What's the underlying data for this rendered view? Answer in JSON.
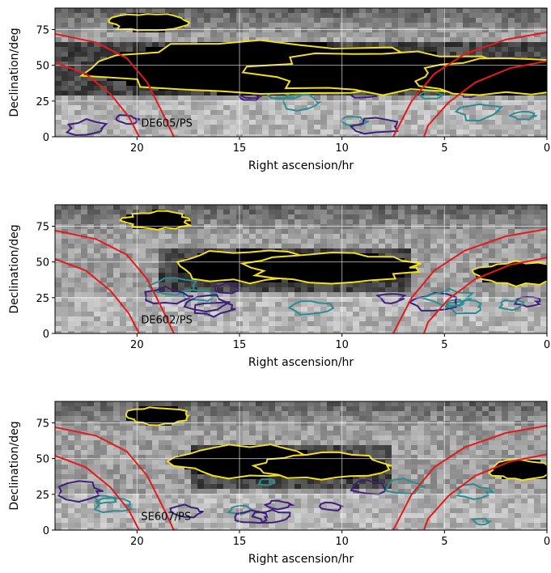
{
  "chart_data": [
    {
      "type": "heatmap",
      "panel_label": "DE605/PS",
      "xlabel": "Right ascension/hr",
      "ylabel": "Declination/deg",
      "xlim": [
        24,
        0
      ],
      "ylim": [
        0,
        90
      ],
      "xticks": [
        "20",
        "15",
        "10",
        "5",
        "0"
      ],
      "yticks": [
        "0",
        "25",
        "50",
        "75"
      ],
      "grid": true,
      "colormap": "gray",
      "contour_colors": [
        "#3b1f7a",
        "#2e8b8f",
        "#f2e01a"
      ],
      "horizon_color": "#e41a1c",
      "dark_band": {
        "ra_start": 24,
        "ra_end": 0,
        "dec_low": 30,
        "dec_high": 65
      },
      "blobs": [
        {
          "ra": 19.5,
          "dec": 80,
          "w": 1.8,
          "h": 6
        },
        {
          "ra": 14.0,
          "dec": 48,
          "w": 8.0,
          "h": 18
        },
        {
          "ra": 8.0,
          "dec": 45,
          "w": 6.0,
          "h": 14
        },
        {
          "ra": 2.0,
          "dec": 42,
          "w": 4.5,
          "h": 12
        }
      ]
    },
    {
      "type": "heatmap",
      "panel_label": "DE602/PS",
      "xlabel": "Right ascension/hr",
      "ylabel": "Declination/deg",
      "xlim": [
        24,
        0
      ],
      "ylim": [
        0,
        90
      ],
      "xticks": [
        "20",
        "15",
        "10",
        "5",
        "0"
      ],
      "yticks": [
        "0",
        "25",
        "50",
        "75"
      ],
      "grid": true,
      "colormap": "gray",
      "contour_colors": [
        "#3b1f7a",
        "#2e8b8f",
        "#f2e01a"
      ],
      "horizon_color": "#e41a1c",
      "dark_band": {
        "ra_start": 19,
        "ra_end": 6.5,
        "dec_low": 30,
        "dec_high": 58
      },
      "blobs": [
        {
          "ra": 19.0,
          "dec": 79,
          "w": 1.6,
          "h": 6
        },
        {
          "ra": 14.5,
          "dec": 47,
          "w": 3.5,
          "h": 11
        },
        {
          "ra": 10.5,
          "dec": 46,
          "w": 4.0,
          "h": 10
        },
        {
          "ra": 1.5,
          "dec": 42,
          "w": 2.0,
          "h": 8
        }
      ]
    },
    {
      "type": "heatmap",
      "panel_label": "SE607/PS",
      "xlabel": "Right ascension/hr",
      "ylabel": "Declination/deg",
      "xlim": [
        24,
        0
      ],
      "ylim": [
        0,
        90
      ],
      "xticks": [
        "20",
        "15",
        "10",
        "5",
        "0"
      ],
      "yticks": [
        "0",
        "25",
        "50",
        "75"
      ],
      "grid": true,
      "colormap": "gray",
      "contour_colors": [
        "#3b1f7a",
        "#2e8b8f",
        "#f2e01a"
      ],
      "horizon_color": "#e41a1c",
      "dark_band": {
        "ra_start": 17.5,
        "ra_end": 7.5,
        "dec_low": 30,
        "dec_high": 58
      },
      "blobs": [
        {
          "ra": 19.0,
          "dec": 80,
          "w": 1.5,
          "h": 6
        },
        {
          "ra": 14.5,
          "dec": 48,
          "w": 3.5,
          "h": 11
        },
        {
          "ra": 11.0,
          "dec": 45,
          "w": 3.0,
          "h": 9
        },
        {
          "ra": 1.2,
          "dec": 42,
          "w": 1.5,
          "h": 7
        }
      ]
    }
  ]
}
